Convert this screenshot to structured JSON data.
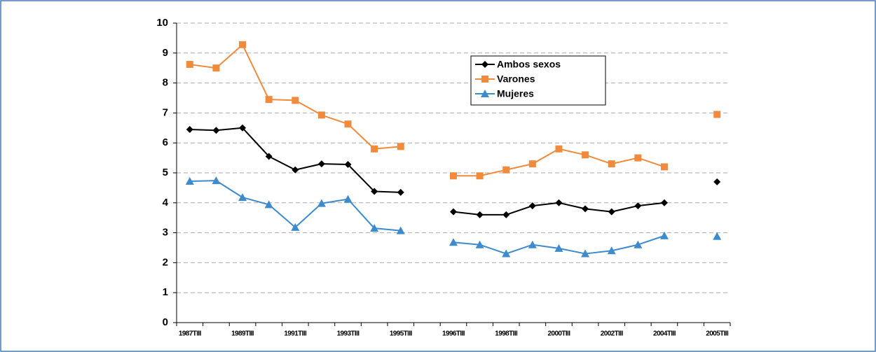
{
  "chart_data": {
    "type": "line",
    "categories": [
      "1987TIII",
      null,
      "1989TIII",
      null,
      "1991TIII",
      null,
      "1993TIII",
      null,
      "1995TIII",
      null,
      "1996TIII",
      null,
      "1998TIII",
      null,
      "2000TIII",
      null,
      "2002TIII",
      null,
      "2004TIII",
      null,
      "2005TIII"
    ],
    "series": [
      {
        "name": "Ambos sexos",
        "color": "#000000",
        "marker": "diamond",
        "values": [
          6.45,
          6.42,
          6.5,
          5.55,
          5.1,
          5.3,
          5.28,
          4.38,
          4.35,
          null,
          3.7,
          3.6,
          3.6,
          3.9,
          4.0,
          3.8,
          3.7,
          3.9,
          4.0,
          null,
          4.7
        ]
      },
      {
        "name": "Varones",
        "color": "#f08a3c",
        "marker": "square",
        "values": [
          8.62,
          8.5,
          9.28,
          7.45,
          7.42,
          6.93,
          6.63,
          5.8,
          5.88,
          null,
          4.9,
          4.9,
          5.1,
          5.3,
          5.8,
          5.6,
          5.3,
          5.5,
          5.2,
          null,
          6.95
        ]
      },
      {
        "name": "Mujeres",
        "color": "#3d8bcd",
        "marker": "triangle",
        "values": [
          4.72,
          4.74,
          4.18,
          3.94,
          3.18,
          3.98,
          4.12,
          3.15,
          3.07,
          null,
          2.68,
          2.6,
          2.3,
          2.6,
          2.48,
          2.3,
          2.4,
          2.6,
          2.9,
          null,
          2.88
        ]
      }
    ],
    "ylim": [
      0,
      10
    ],
    "yticks": [
      0,
      1,
      2,
      3,
      4,
      5,
      6,
      7,
      8,
      9,
      10
    ],
    "grid": true
  }
}
